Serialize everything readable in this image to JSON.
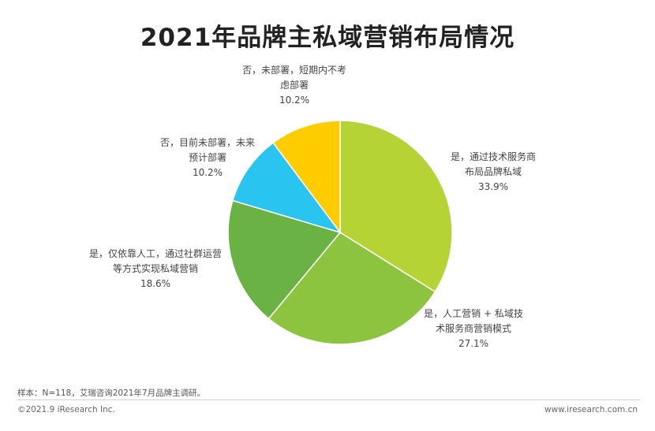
{
  "chart_data": {
    "type": "pie",
    "title": "2021年品牌主私域营销布局情况",
    "slices": [
      {
        "label_lines": [
          "是，通过技术服务商",
          "布局品牌私域"
        ],
        "value": 33.9,
        "value_label": "33.9%",
        "color": "#b5d334"
      },
      {
        "label_lines": [
          "是，人工营销 + 私域技",
          "术服务商营销模式"
        ],
        "value": 27.1,
        "value_label": "27.1%",
        "color": "#8cc43f"
      },
      {
        "label_lines": [
          "是，仅依靠人工，通过社群运营",
          "等方式实现私域营销"
        ],
        "value": 18.6,
        "value_label": "18.6%",
        "color": "#6ab243"
      },
      {
        "label_lines": [
          "否，目前未部署，未来",
          "预计部署"
        ],
        "value": 10.2,
        "value_label": "10.2%",
        "color": "#29c4ef"
      },
      {
        "label_lines": [
          "否，未部署，短期内不考",
          "虑部署"
        ],
        "value": 10.2,
        "value_label": "10.2%",
        "color": "#ffcc00"
      }
    ]
  },
  "footer": {
    "source": "样本：N=118，艾瑞咨询2021年7月品牌主调研。",
    "copyright": "©2021.9 iResearch Inc.",
    "website": "www.iresearch.com.cn"
  }
}
